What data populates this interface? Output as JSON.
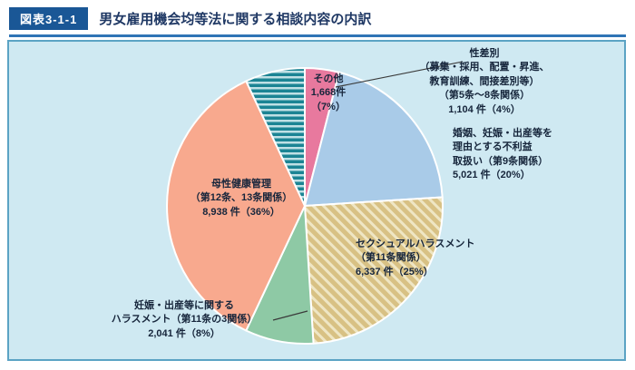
{
  "header": {
    "badge": "図表3-1-1",
    "title": "男女雇用機会均等法に関する相談内容の内訳"
  },
  "chart_data": {
    "type": "pie",
    "title": "男女雇用機会均等法に関する相談内容の内訳",
    "start_angle_deg": 0,
    "direction": "clockwise",
    "slices": [
      {
        "label": "性差別（募集・採用、配置・昇進、教育訓練、間接差別等）（第5条～8条関係）",
        "count": "1,104件",
        "percent": 4,
        "color": "#e8799e",
        "pattern": "none"
      },
      {
        "label": "婚姻、妊娠・出産等を理由とする不利益取扱い（第9条関係）",
        "count": "5,021件",
        "percent": 20,
        "color": "#a9cbe8",
        "pattern": "none"
      },
      {
        "label": "セクシュアルハラスメント（第11条関係）",
        "count": "6,337件",
        "percent": 25,
        "color": "#d8c184",
        "pattern": "diagonal",
        "pattern_color": "#efe6c4"
      },
      {
        "label": "妊娠・出産等に関するハラスメント（第11条の3関係）",
        "count": "2,041件",
        "percent": 8,
        "color": "#8ec9a5",
        "pattern": "none"
      },
      {
        "label": "母性健康管理（第12条、13条関係）",
        "count": "8,938件",
        "percent": 36,
        "color": "#f8a98e",
        "pattern": "none"
      },
      {
        "label": "その他",
        "count": "1,668件",
        "percent": 7,
        "color": "#1b8494",
        "pattern": "horizontal",
        "pattern_color": "#bfe0e5"
      }
    ]
  },
  "labels": {
    "sex_discrimination": "性差別\n（募集・採用、配置・昇進、\n教育訓練、間接差別等）\n（第5条～8条関係）\n1,104 件（4%）",
    "disadvantage": "婚姻、妊娠・出産等を\n理由とする不利益\n取扱い（第9条関係）\n5,021 件（20%）",
    "sexual_harassment": "セクシュアルハラスメント\n（第11条関係）\n6,337 件（25%）",
    "maternity_harassment": "妊娠・出産等に関する\nハラスメント（第11条の3関係）\n2,041 件（8%）",
    "maternal_health": "母性健康管理\n（第12条、13条関係）\n8,938 件（36%）",
    "other": "その他\n1,668件\n（7%）"
  }
}
